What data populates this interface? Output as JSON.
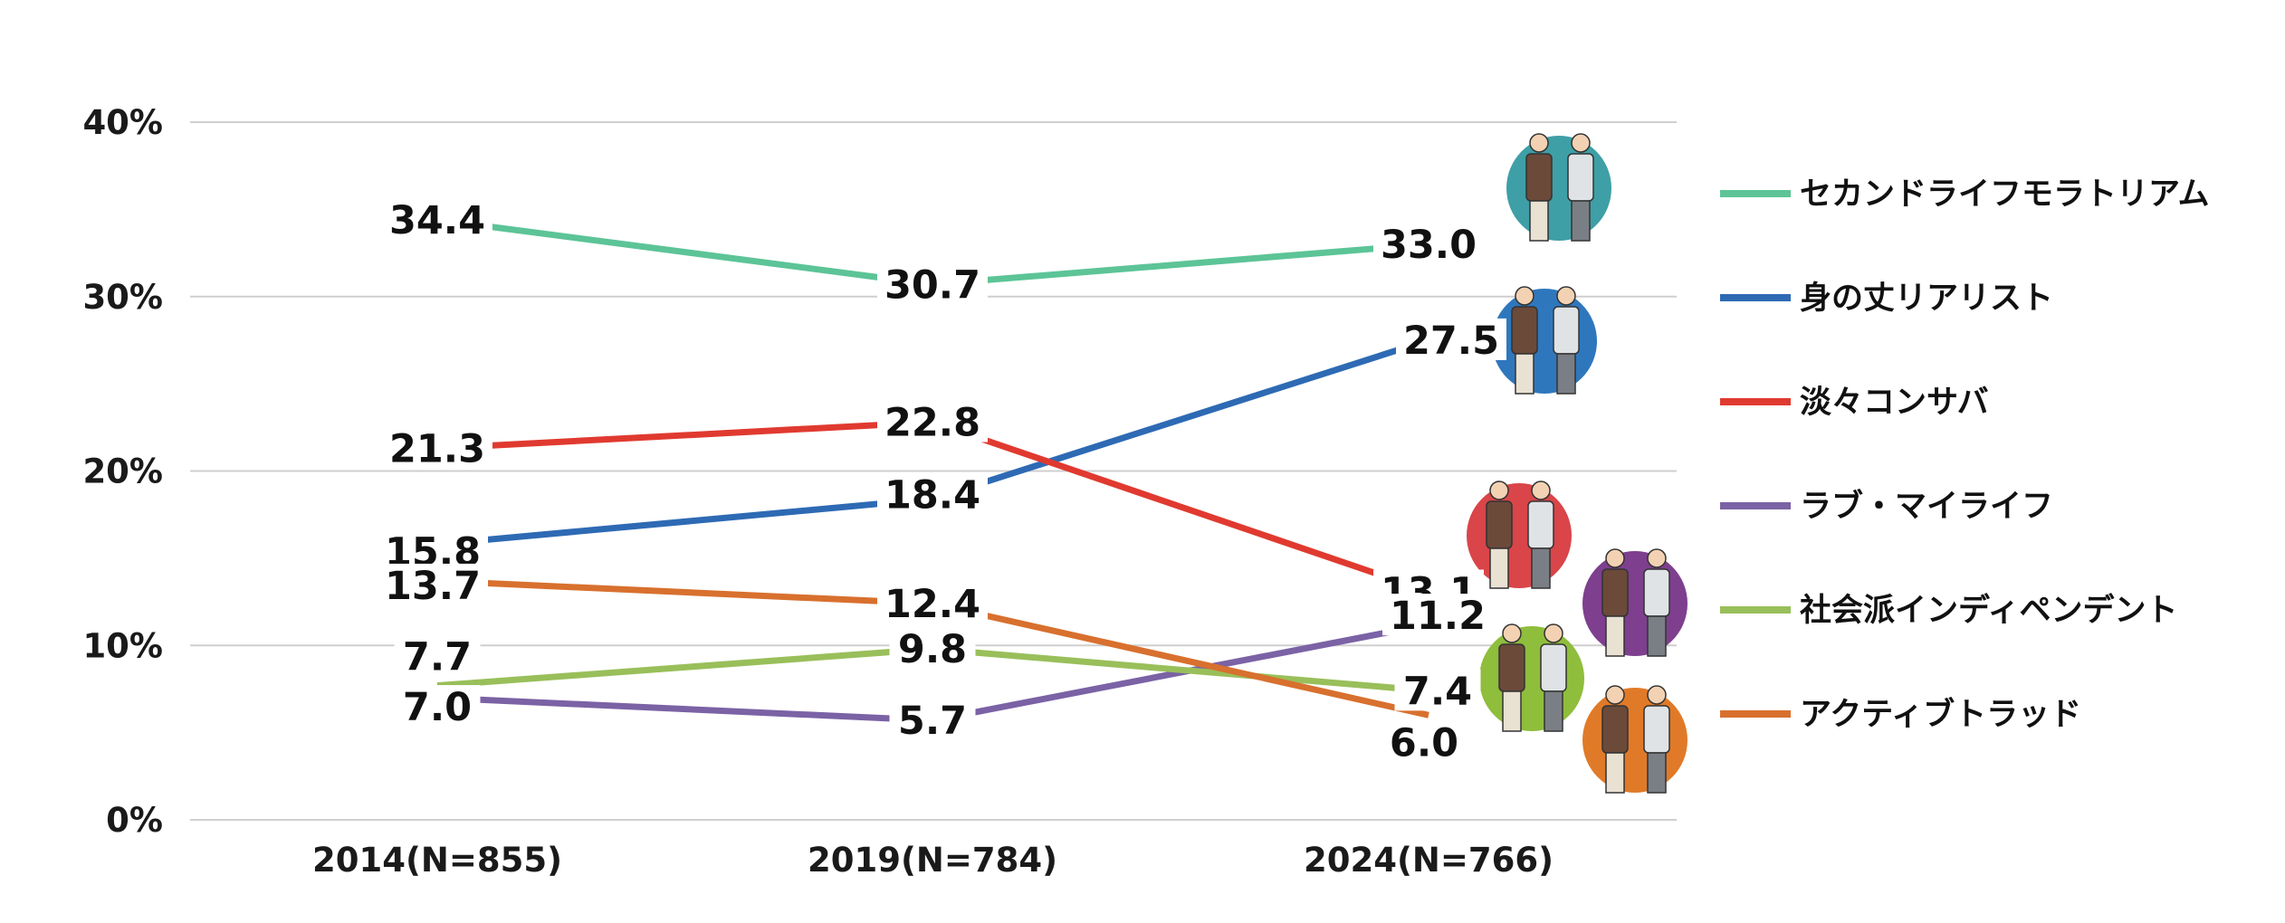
{
  "chart_data": {
    "type": "line",
    "title": "",
    "xlabel": "",
    "ylabel": "",
    "categories": [
      "2014(N=855)",
      "2019(N=784)",
      "2024(N=766)"
    ],
    "ylim": [
      0,
      40
    ],
    "yticks": [
      0,
      10,
      20,
      30,
      40
    ],
    "ytick_labels": [
      "0%",
      "10%",
      "20%",
      "30%",
      "40%"
    ],
    "grid": true,
    "legend_position": "right",
    "series": [
      {
        "name": "セカンドライフモラトリアム",
        "color": "#5cc497",
        "values": [
          34.4,
          30.7,
          33.0
        ],
        "labels": [
          "34.4",
          "30.7",
          "33.0"
        ]
      },
      {
        "name": "身の丈リアリスト",
        "color": "#2e6ab4",
        "values": [
          15.8,
          18.4,
          27.5
        ],
        "labels": [
          "15.8",
          "18.4",
          "27.5"
        ]
      },
      {
        "name": "淡々コンサバ",
        "color": "#e03a30",
        "values": [
          21.3,
          22.8,
          13.1
        ],
        "labels": [
          "21.3",
          "22.8",
          "13.1"
        ]
      },
      {
        "name": "ラブ・マイライフ",
        "color": "#7b62a5",
        "values": [
          7.0,
          5.7,
          11.2
        ],
        "labels": [
          "7.0",
          "5.7",
          "11.2"
        ]
      },
      {
        "name": "社会派インディペンデント",
        "color": "#99bf5a",
        "values": [
          7.7,
          9.8,
          7.4
        ],
        "labels": [
          "7.7",
          "9.8",
          "7.4"
        ]
      },
      {
        "name": "アクティブトラッド",
        "color": "#d8702e",
        "values": [
          13.7,
          12.4,
          6.0
        ],
        "labels": [
          "13.7",
          "12.4",
          "6.0"
        ]
      }
    ],
    "illustrations": [
      {
        "name": "couple-illustration-1",
        "bg": "#3e9fa6"
      },
      {
        "name": "couple-illustration-2",
        "bg": "#2f77bd"
      },
      {
        "name": "couple-illustration-3",
        "bg": "#d94549"
      },
      {
        "name": "couple-illustration-4",
        "bg": "#7e3f8e"
      },
      {
        "name": "couple-illustration-5",
        "bg": "#8fbd3c"
      },
      {
        "name": "couple-illustration-6",
        "bg": "#e07a28"
      }
    ]
  }
}
